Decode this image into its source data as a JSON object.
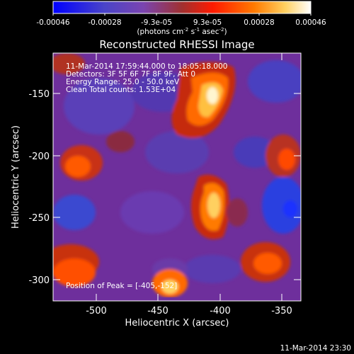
{
  "colorbar": {
    "ticks": [
      "-0.00046",
      "-0.00028",
      "-9.3e-05",
      "9.3e-05",
      "0.00028",
      "0.00046"
    ],
    "units_prefix": "(photons cm",
    "units_exp1": "-2",
    "units_mid": " s",
    "units_exp2": "-1",
    "units_mid2": " asec",
    "units_exp3": "-2",
    "units_suffix": ")"
  },
  "title": "Reconstructed RHESSI Image",
  "annotations": {
    "time_range": "11-Mar-2014 17:59:44.000 to 18:05:18.000",
    "detectors": "Detectors: 3F 5F 6F 7F 8F 9F, Att 0",
    "energy": "Energy Range: 25.0 - 50.0 keV",
    "clean": "Clean     Total counts: 1.53E+04",
    "peak": "Position of Peak = [-405,-152]"
  },
  "axes": {
    "xlabel": "Heliocentric X (arcsec)",
    "ylabel": "Heliocentric Y (arcsec)",
    "xticks": [
      "-500",
      "-450",
      "-400",
      "-350"
    ],
    "yticks": [
      "-150",
      "-200",
      "-250",
      "-300"
    ],
    "xlim": [
      -535,
      -335
    ],
    "ylim": [
      -315,
      -115
    ]
  },
  "timestamp": "11-Mar-2014 23:30",
  "colors": {
    "cmap": [
      "#0000ff",
      "#5b3cb8",
      "#7a3aa8",
      "#aa2a2a",
      "#ff2a00",
      "#ff8a00",
      "#ffe07a",
      "#ffffff"
    ]
  }
}
